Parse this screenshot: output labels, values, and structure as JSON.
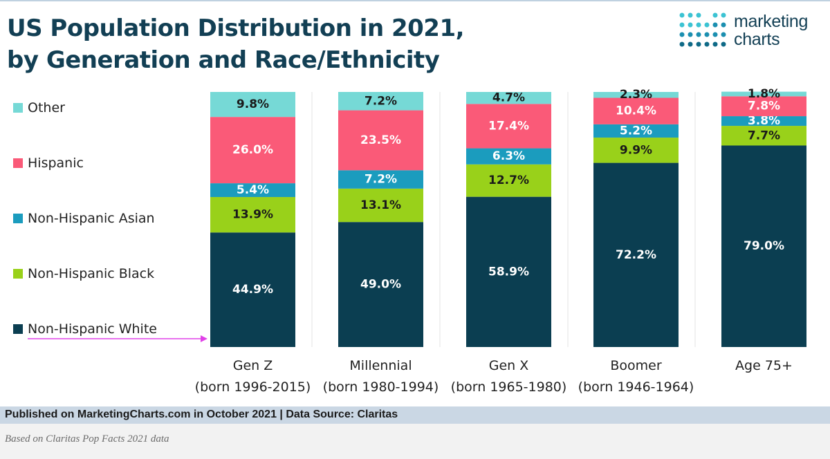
{
  "title_line1": "US Population Distribution in 2021,",
  "title_line2": "by Generation and Race/Ethnicity",
  "logo": {
    "line1": "marketing",
    "line2": "charts"
  },
  "footer": {
    "published": "Published on MarketingCharts.com in October 2021 | Data Source: Claritas",
    "note": "Based on Claritas Pop Facts 2021 data"
  },
  "chart_data": {
    "type": "bar",
    "stacked": true,
    "title": "US Population Distribution in 2021, by Generation and Race/Ethnicity",
    "categories": [
      [
        "Gen Z",
        "(born 1996-2015)"
      ],
      [
        "Millennial",
        "(born 1980-1994)"
      ],
      [
        "Gen X",
        "(born 1965-1980)"
      ],
      [
        "Boomer",
        "(born 1946-1964)"
      ],
      [
        "Age 75+",
        ""
      ]
    ],
    "series": [
      {
        "name": "Non-Hispanic White",
        "color": "#0b3e51",
        "label_color": "#ffffff",
        "values": [
          44.9,
          49.0,
          58.9,
          72.2,
          79.0
        ]
      },
      {
        "name": "Non-Hispanic Black",
        "color": "#99d11a",
        "label_color": "#1a1a1a",
        "values": [
          13.9,
          13.1,
          12.7,
          9.9,
          7.7
        ]
      },
      {
        "name": "Non-Hispanic Asian",
        "color": "#1b9cbe",
        "label_color": "#ffffff",
        "values": [
          5.4,
          7.2,
          6.3,
          5.2,
          3.8
        ]
      },
      {
        "name": "Hispanic",
        "color": "#fa5a78",
        "label_color": "#ffffff",
        "values": [
          26.0,
          23.5,
          17.4,
          10.4,
          7.8
        ]
      },
      {
        "name": "Other",
        "color": "#76d9d6",
        "label_color": "#1a1a1a",
        "values": [
          9.8,
          7.2,
          4.7,
          2.3,
          1.8
        ]
      }
    ],
    "ylim": [
      0,
      100
    ],
    "legend_position": "left",
    "grid": false,
    "annotation_color": "#e040e8"
  }
}
